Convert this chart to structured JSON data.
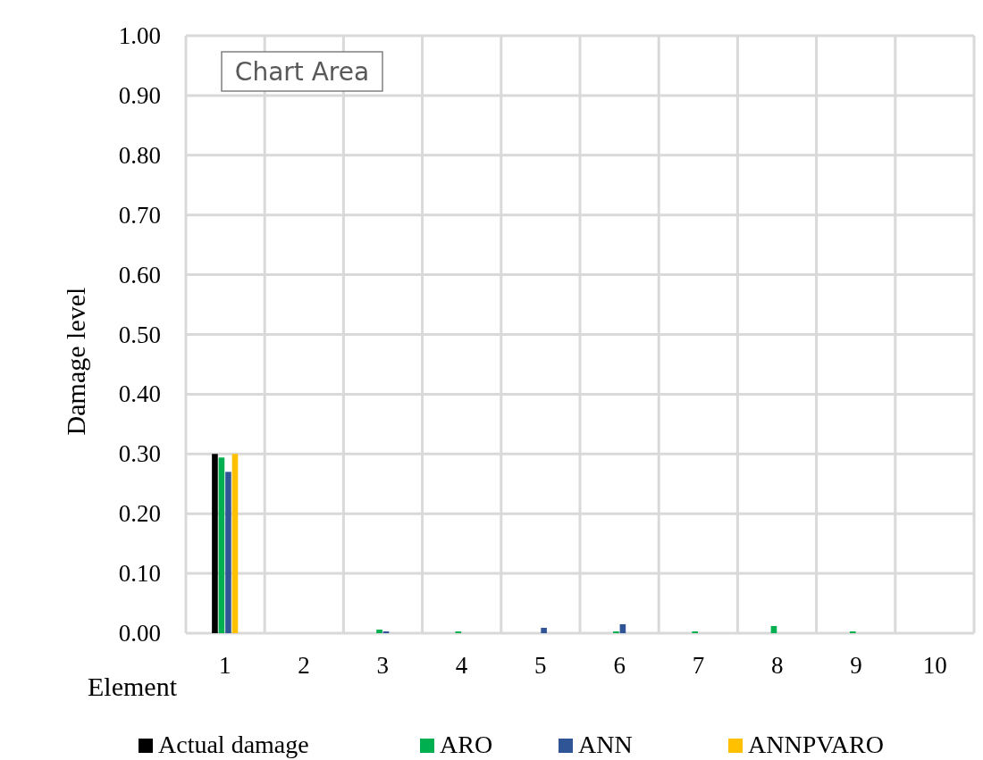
{
  "chart_data": {
    "type": "bar",
    "xlabel": "Element",
    "ylabel": "Damage level",
    "categories": [
      "1",
      "2",
      "3",
      "4",
      "5",
      "6",
      "7",
      "8",
      "9",
      "10"
    ],
    "series": [
      {
        "name": "Actual damage",
        "color": "#000000",
        "values": [
          0.3,
          0,
          0,
          0,
          0,
          0,
          0,
          0,
          0,
          0
        ]
      },
      {
        "name": "ARO",
        "color": "#00b050",
        "values": [
          0.294,
          0,
          0.006,
          0.003,
          0,
          0.003,
          0.003,
          0.012,
          0.003,
          0
        ]
      },
      {
        "name": "ANN",
        "color": "#2f5597",
        "values": [
          0.27,
          0,
          0.003,
          0,
          0.009,
          0.015,
          0,
          0,
          0,
          0
        ]
      },
      {
        "name": "ANNPVARO",
        "color": "#ffc000",
        "values": [
          0.3,
          0,
          0,
          0,
          0,
          0,
          0,
          0,
          0,
          0
        ]
      }
    ],
    "ylim": [
      0,
      1
    ],
    "yticks": [
      {
        "value": 0,
        "label": "0.00"
      },
      {
        "value": 0.1,
        "label": "0.10"
      },
      {
        "value": 0.2,
        "label": "0.20"
      },
      {
        "value": 0.3,
        "label": "0.30"
      },
      {
        "value": 0.4,
        "label": "0.40"
      },
      {
        "value": 0.5,
        "label": "0.50"
      },
      {
        "value": 0.6,
        "label": "0.60"
      },
      {
        "value": 0.7,
        "label": "0.70"
      },
      {
        "value": 0.8,
        "label": "0.80"
      },
      {
        "value": 0.9,
        "label": "0.90"
      },
      {
        "value": 1,
        "label": "1.00"
      }
    ],
    "grid": true,
    "legend": "bottom",
    "annotations": [
      "Chart Area"
    ]
  }
}
